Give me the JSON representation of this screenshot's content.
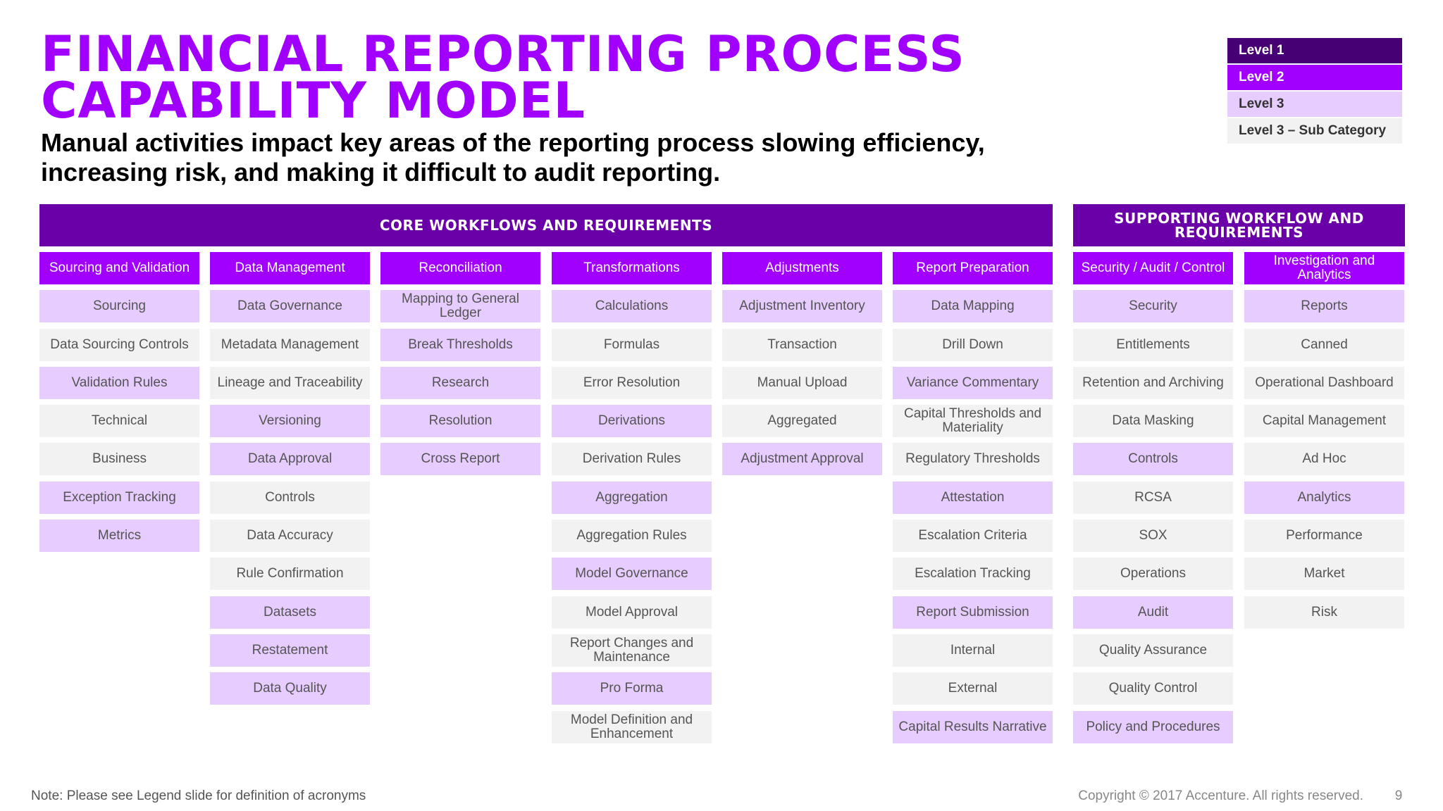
{
  "title": {
    "line1": "FINANCIAL REPORTING PROCESS",
    "line2": "CAPABILITY MODEL"
  },
  "subtitle": "Manual activities impact key areas of the reporting process slowing efficiency, increasing risk, and making it difficult to audit reporting.",
  "legend": [
    {
      "label": "Level 1"
    },
    {
      "label": "Level 2"
    },
    {
      "label": "Level 3"
    },
    {
      "label": "Level 3 – Sub Category"
    }
  ],
  "colors": {
    "title_purple": "#a100ff",
    "level1": "#460073",
    "level2": "#a100ff",
    "level3": "#e6ccff",
    "level3_sub": "#f2f2f2",
    "section_header": "#6a00a8"
  },
  "core_header": "CORE WORKFLOWS AND REQUIREMENTS",
  "supporting_header": "SUPPORTING WORKFLOW AND REQUIREMENTS",
  "columns": [
    {
      "header": "Sourcing and Validation",
      "items": [
        {
          "text": "Sourcing",
          "level": 3
        },
        {
          "text": "Data Sourcing Controls",
          "level": 4
        },
        {
          "text": "Validation Rules",
          "level": 3
        },
        {
          "text": "Technical",
          "level": 4
        },
        {
          "text": "Business",
          "level": 4
        },
        {
          "text": "Exception Tracking",
          "level": 3
        },
        {
          "text": "Metrics",
          "level": 3
        }
      ]
    },
    {
      "header": "Data Management",
      "items": [
        {
          "text": "Data Governance",
          "level": 3
        },
        {
          "text": "Metadata Management",
          "level": 4
        },
        {
          "text": "Lineage and Traceability",
          "level": 4
        },
        {
          "text": "Versioning",
          "level": 3
        },
        {
          "text": "Data Approval",
          "level": 3
        },
        {
          "text": "Controls",
          "level": 4
        },
        {
          "text": "Data Accuracy",
          "level": 4
        },
        {
          "text": "Rule Confirmation",
          "level": 4
        },
        {
          "text": "Datasets",
          "level": 3
        },
        {
          "text": "Restatement",
          "level": 3
        },
        {
          "text": "Data Quality",
          "level": 3
        }
      ]
    },
    {
      "header": "Reconciliation",
      "items": [
        {
          "text": "Mapping to General Ledger",
          "level": 3
        },
        {
          "text": "Break Thresholds",
          "level": 3
        },
        {
          "text": "Research",
          "level": 3
        },
        {
          "text": "Resolution",
          "level": 3
        },
        {
          "text": "Cross Report",
          "level": 3
        }
      ]
    },
    {
      "header": "Transformations",
      "items": [
        {
          "text": "Calculations",
          "level": 3
        },
        {
          "text": "Formulas",
          "level": 4
        },
        {
          "text": "Error Resolution",
          "level": 4
        },
        {
          "text": "Derivations",
          "level": 3
        },
        {
          "text": "Derivation Rules",
          "level": 4
        },
        {
          "text": "Aggregation",
          "level": 3
        },
        {
          "text": "Aggregation Rules",
          "level": 4
        },
        {
          "text": "Model Governance",
          "level": 3
        },
        {
          "text": "Model Approval",
          "level": 4
        },
        {
          "text": "Report Changes and Maintenance",
          "level": 4
        },
        {
          "text": "Pro Forma",
          "level": 3
        },
        {
          "text": "Model Definition and Enhancement",
          "level": 4
        }
      ]
    },
    {
      "header": "Adjustments",
      "items": [
        {
          "text": "Adjustment Inventory",
          "level": 3
        },
        {
          "text": "Transaction",
          "level": 4
        },
        {
          "text": "Manual Upload",
          "level": 4
        },
        {
          "text": "Aggregated",
          "level": 4
        },
        {
          "text": "Adjustment Approval",
          "level": 3
        }
      ]
    },
    {
      "header": "Report Preparation",
      "items": [
        {
          "text": "Data Mapping",
          "level": 3
        },
        {
          "text": "Drill Down",
          "level": 4
        },
        {
          "text": "Variance Commentary",
          "level": 3
        },
        {
          "text": "Capital Thresholds and Materiality",
          "level": 4
        },
        {
          "text": "Regulatory Thresholds",
          "level": 4
        },
        {
          "text": "Attestation",
          "level": 3
        },
        {
          "text": "Escalation Criteria",
          "level": 4
        },
        {
          "text": "Escalation Tracking",
          "level": 4
        },
        {
          "text": "Report Submission",
          "level": 3
        },
        {
          "text": "Internal",
          "level": 4
        },
        {
          "text": "External",
          "level": 4
        },
        {
          "text": "Capital Results Narrative",
          "level": 3
        }
      ]
    },
    {
      "header": "Security / Audit / Control",
      "items": [
        {
          "text": "Security",
          "level": 3
        },
        {
          "text": "Entitlements",
          "level": 4
        },
        {
          "text": "Retention and Archiving",
          "level": 4
        },
        {
          "text": "Data Masking",
          "level": 4
        },
        {
          "text": "Controls",
          "level": 3
        },
        {
          "text": "RCSA",
          "level": 4
        },
        {
          "text": "SOX",
          "level": 4
        },
        {
          "text": "Operations",
          "level": 4
        },
        {
          "text": "Audit",
          "level": 3
        },
        {
          "text": "Quality Assurance",
          "level": 4
        },
        {
          "text": "Quality Control",
          "level": 4
        },
        {
          "text": "Policy and Procedures",
          "level": 3
        }
      ]
    },
    {
      "header": "Investigation and Analytics",
      "items": [
        {
          "text": "Reports",
          "level": 3
        },
        {
          "text": "Canned",
          "level": 4
        },
        {
          "text": "Operational Dashboard",
          "level": 4
        },
        {
          "text": "Capital Management",
          "level": 4
        },
        {
          "text": "Ad Hoc",
          "level": 4
        },
        {
          "text": "Analytics",
          "level": 3
        },
        {
          "text": "Performance",
          "level": 4
        },
        {
          "text": "Market",
          "level": 4
        },
        {
          "text": "Risk",
          "level": 4
        }
      ]
    }
  ],
  "footer": {
    "note": "Note: Please see Legend slide for definition of acronyms",
    "copyright": "Copyright © 2017 Accenture. All rights reserved.",
    "page": "9"
  }
}
